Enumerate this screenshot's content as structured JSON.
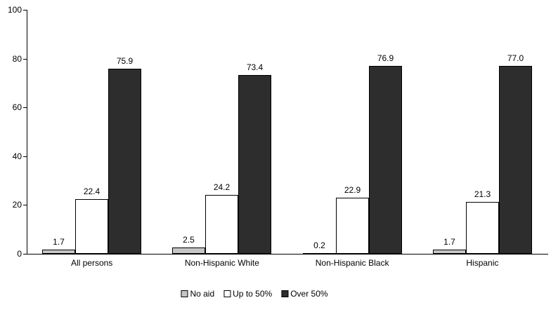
{
  "chart_data": {
    "type": "bar",
    "title": "",
    "categories": [
      "All persons",
      "Non-Hispanic White",
      "Non-Hispanic Black",
      "Hispanic"
    ],
    "series": [
      {
        "name": "No aid",
        "color": "#c6c6c6",
        "values": [
          1.7,
          2.5,
          0.2,
          1.7
        ]
      },
      {
        "name": "Up to 50%",
        "color": "#ffffff",
        "values": [
          22.4,
          24.2,
          22.9,
          21.3
        ]
      },
      {
        "name": "Over 50%",
        "color": "#2d2d2d",
        "values": [
          75.9,
          73.4,
          76.9,
          77.0
        ]
      }
    ],
    "xlabel": "",
    "ylabel": "",
    "ylim": [
      0,
      100
    ],
    "yticks": [
      0,
      20,
      40,
      60,
      80,
      100
    ],
    "grid": false,
    "legend_position": "bottom",
    "value_labels": true,
    "value_label_decimals": 1,
    "axis_color": "#000000",
    "text_color": "#000000",
    "background_color": "#ffffff"
  }
}
